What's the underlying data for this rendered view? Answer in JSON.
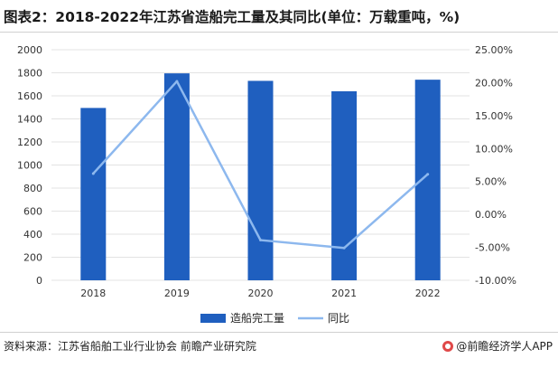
{
  "title": "图表2：2018-2022年江苏省造船完工量及其同比(单位：万载重吨，%)",
  "footer": {
    "source": "资料来源：江苏省船舶工业行业协会 前瞻产业研究院",
    "brand": "@前瞻经济学人APP"
  },
  "colors": {
    "bar": "#1f5fbf",
    "line": "#8db8ee",
    "grid": "#e3e3e3",
    "axis_text": "#333333"
  },
  "chart_data": {
    "type": "bar",
    "title": "图表2：2018-2022年江苏省造船完工量及其同比(单位：万载重吨，%)",
    "categories": [
      "2018",
      "2019",
      "2020",
      "2021",
      "2022"
    ],
    "series": [
      {
        "name": "造船完工量",
        "type": "bar",
        "axis": "left",
        "values": [
          1495,
          1795,
          1730,
          1640,
          1740
        ]
      },
      {
        "name": "同比",
        "type": "line",
        "axis": "right",
        "values": [
          6.2,
          20.2,
          -3.9,
          -5.1,
          6.1
        ]
      }
    ],
    "y_left": {
      "min": 0,
      "max": 2000,
      "step": 200,
      "ticks": [
        "0",
        "200",
        "400",
        "600",
        "800",
        "1000",
        "1200",
        "1400",
        "1600",
        "1800",
        "2000"
      ]
    },
    "y_right": {
      "min": -10,
      "max": 25,
      "step": 5,
      "ticks": [
        "-10.00%",
        "-5.00%",
        "0.00%",
        "5.00%",
        "10.00%",
        "15.00%",
        "20.00%",
        "25.00%"
      ]
    },
    "grid": true,
    "legend_position": "bottom"
  }
}
